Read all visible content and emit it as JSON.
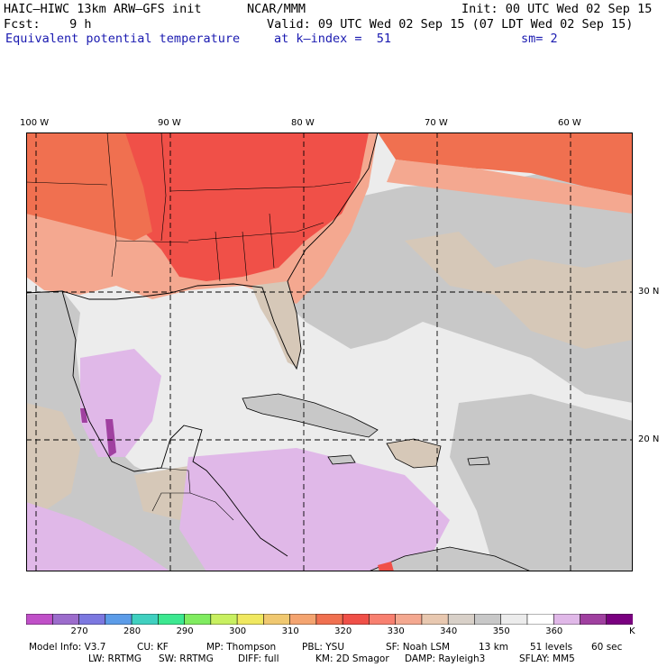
{
  "header": {
    "model": "HAIC–HIWC 13km ARW–GFS init",
    "org": "NCAR/MMM",
    "init": "Init: 00 UTC Wed 02 Sep 15",
    "fcst": "Fcst:    9 h",
    "valid": "Valid: 09 UTC Wed 02 Sep 15 (07 LDT Wed 02 Sep 15)",
    "field": "Equivalent potential temperature",
    "kindex": "at k–index =  51",
    "sm": "sm= 2"
  },
  "map": {
    "lon_labels": [
      "100 W",
      "90 W",
      "80 W",
      "70 W",
      "60 W"
    ],
    "lat_labels": [
      "30 N",
      "20 N"
    ]
  },
  "colorbar": {
    "unit": "K",
    "labels": [
      "270",
      "280",
      "290",
      "300",
      "310",
      "320",
      "330",
      "340",
      "350",
      "360"
    ],
    "colors": [
      "#c050c8",
      "#9c6ccc",
      "#7c78e0",
      "#5c9ce8",
      "#40d0c0",
      "#3ce890",
      "#80ec60",
      "#c8f060",
      "#f0e860",
      "#f0c870",
      "#f4a470",
      "#f07050",
      "#f05048",
      "#f88070",
      "#f4a890",
      "#e8c8b0",
      "#d8d0c8",
      "#c8c8c8",
      "#ececec",
      "#ffffff",
      "#e0b8e8",
      "#a040a0",
      "#7a0080"
    ]
  },
  "footer": {
    "line1": [
      "Model Info: V3.7",
      "CU: KF",
      "MP: Thompson",
      "PBL: YSU",
      "SF: Noah LSM",
      "13 km",
      "51 levels",
      "60 sec"
    ],
    "line2": [
      "LW: RRTMG",
      "SW: RRTMG",
      "DIFF: full",
      "KM: 2D Smagor",
      "DAMP: Rayleigh3",
      "SFLAY: MM5"
    ]
  }
}
